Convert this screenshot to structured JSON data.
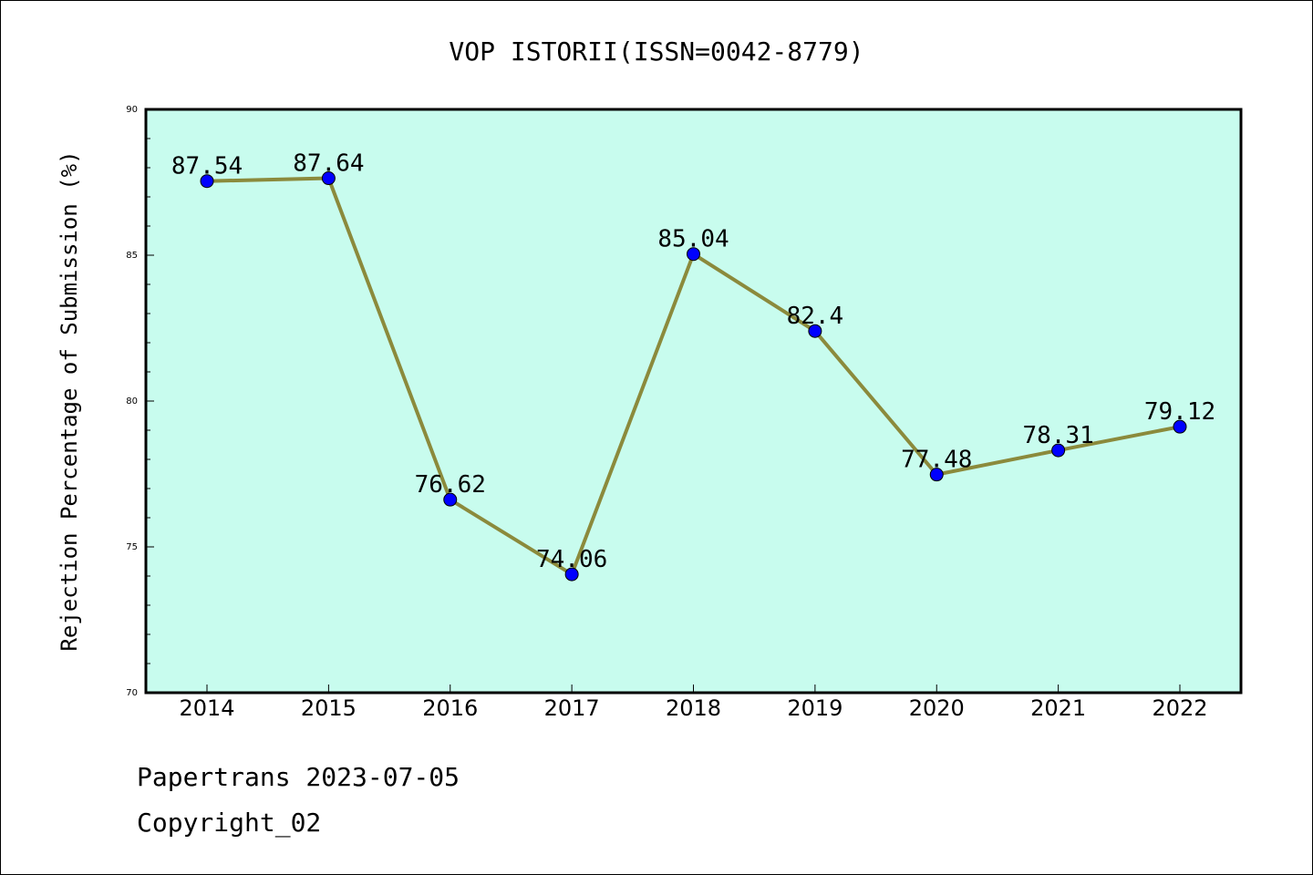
{
  "chart_data": {
    "type": "line",
    "title": "VOP ISTORII(ISSN=0042-8779)",
    "xlabel": "",
    "ylabel": "Rejection Percentage of Submission (%)",
    "categories": [
      "2014",
      "2015",
      "2016",
      "2017",
      "2018",
      "2019",
      "2020",
      "2021",
      "2022"
    ],
    "series": [
      {
        "values": [
          87.54,
          87.64,
          76.62,
          74.06,
          85.04,
          82.4,
          77.48,
          78.31,
          79.12
        ],
        "labels": [
          "87.54",
          "87.64",
          "76.62",
          "74.06",
          "85.04",
          "82.4",
          "77.48",
          "78.31",
          "79.12"
        ],
        "line_color": "#8b8a3c",
        "marker_color": "#0000ff"
      }
    ],
    "ylim": [
      70,
      90
    ],
    "yticks": [
      "70",
      "75",
      "80",
      "85",
      "90"
    ],
    "plot_background": "#c8fcee",
    "grid": false
  },
  "footer": {
    "line1": "Papertrans 2023-07-05",
    "line2": "Copyright_02"
  }
}
